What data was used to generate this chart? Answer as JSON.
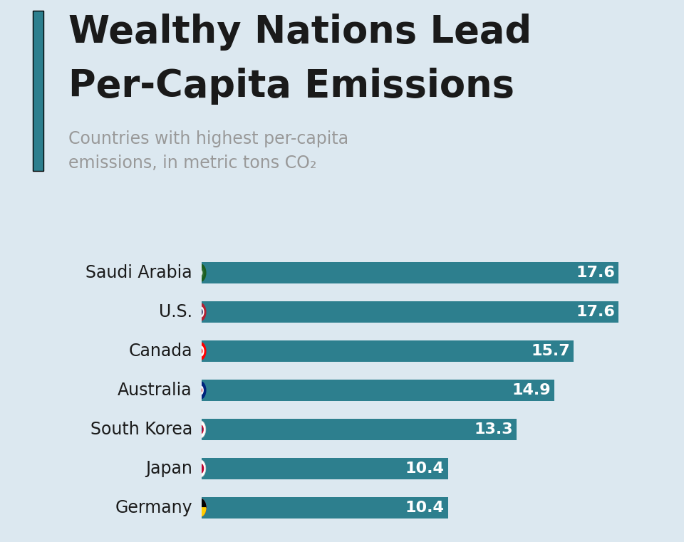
{
  "title_line1": "Wealthy Nations Lead",
  "title_line2": "Per-Capita Emissions",
  "subtitle_line1": "Countries with highest per-capita",
  "subtitle_line2": "emissions, in metric tons CO₂",
  "countries": [
    "Saudi Arabia",
    "U.S.",
    "Canada",
    "Australia",
    "South Korea",
    "Japan",
    "Germany"
  ],
  "values": [
    17.6,
    17.6,
    15.7,
    14.9,
    13.3,
    10.4,
    10.4
  ],
  "bar_color": "#2d7f8e",
  "background_color": "#dce8f0",
  "title_color": "#1a1a1a",
  "subtitle_color": "#999999",
  "value_label_color": "#ffffff",
  "country_label_color": "#1a1a1a",
  "left_accent_color": "#2d7f8e",
  "xlim_max": 19.5,
  "bar_height": 0.55,
  "title_fontsize": 38,
  "subtitle_fontsize": 17,
  "country_fontsize": 17,
  "value_fontsize": 16,
  "flag_colors": {
    "Saudi Arabia": [
      "#1b5e20",
      "#ffffff"
    ],
    "U.S.": [
      "#b22234",
      "#ffffff",
      "#3c3b6e"
    ],
    "Canada": [
      "#ff0000",
      "#ffffff"
    ],
    "Australia": [
      "#00247d",
      "#ffffff",
      "#cc0001"
    ],
    "South Korea": [
      "#ffffff",
      "#c60c30",
      "#003478"
    ],
    "Japan": [
      "#ffffff",
      "#bc002d"
    ],
    "Germany": [
      "#000000",
      "#dd0000",
      "#ffce00"
    ]
  }
}
